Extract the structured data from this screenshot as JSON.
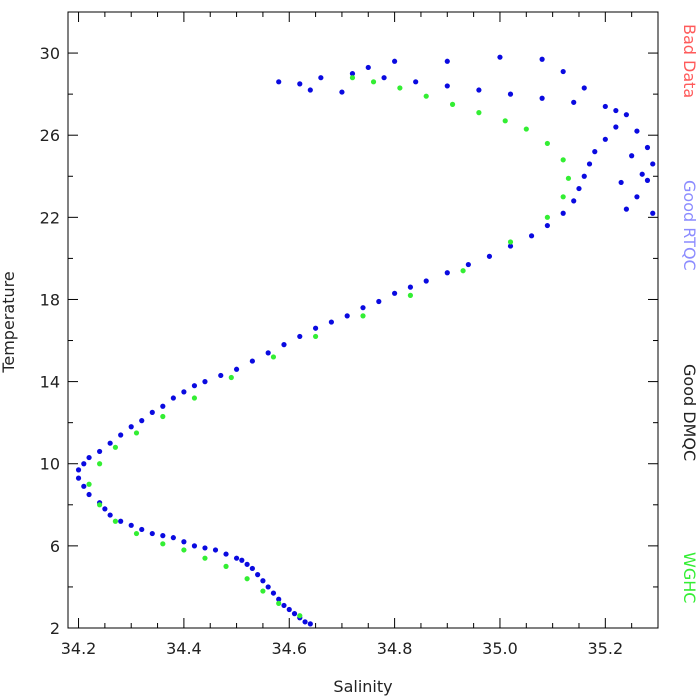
{
  "chart_data": {
    "type": "scatter",
    "xlabel": "Salinity",
    "ylabel": "Temperature",
    "xlim": [
      34.18,
      35.3
    ],
    "ylim": [
      2,
      32
    ],
    "x_ticks": [
      "34.2",
      "34.4",
      "34.6",
      "34.8",
      "35.0",
      "35.2"
    ],
    "y_ticks": [
      "2",
      "6",
      "10",
      "14",
      "18",
      "22",
      "26",
      "30"
    ],
    "legend": [
      {
        "label": "Bad Data",
        "color": "#ff5a5a"
      },
      {
        "label": "Good RTQC",
        "color": "#8c8cff"
      },
      {
        "label": "Good DMQC",
        "color": "#222222"
      },
      {
        "label": "WGHC",
        "color": "#33ee33"
      }
    ],
    "legend_placement": "right",
    "grid": false,
    "series": [
      {
        "color": "#0a0ae0",
        "points": [
          [
            34.64,
            2.2
          ],
          [
            34.63,
            2.3
          ],
          [
            34.62,
            2.5
          ],
          [
            34.61,
            2.7
          ],
          [
            34.6,
            2.9
          ],
          [
            34.59,
            3.1
          ],
          [
            34.58,
            3.4
          ],
          [
            34.57,
            3.7
          ],
          [
            34.56,
            4.0
          ],
          [
            34.55,
            4.3
          ],
          [
            34.54,
            4.6
          ],
          [
            34.53,
            4.9
          ],
          [
            34.52,
            5.1
          ],
          [
            34.51,
            5.3
          ],
          [
            34.5,
            5.4
          ],
          [
            34.48,
            5.6
          ],
          [
            34.46,
            5.8
          ],
          [
            34.44,
            5.9
          ],
          [
            34.42,
            6.0
          ],
          [
            34.4,
            6.2
          ],
          [
            34.38,
            6.4
          ],
          [
            34.36,
            6.5
          ],
          [
            34.34,
            6.6
          ],
          [
            34.32,
            6.8
          ],
          [
            34.3,
            7.0
          ],
          [
            34.28,
            7.2
          ],
          [
            34.26,
            7.5
          ],
          [
            34.25,
            7.8
          ],
          [
            34.24,
            8.1
          ],
          [
            34.22,
            8.5
          ],
          [
            34.21,
            8.9
          ],
          [
            34.2,
            9.3
          ],
          [
            34.2,
            9.7
          ],
          [
            34.21,
            10.0
          ],
          [
            34.22,
            10.3
          ],
          [
            34.24,
            10.6
          ],
          [
            34.26,
            11.0
          ],
          [
            34.28,
            11.4
          ],
          [
            34.3,
            11.8
          ],
          [
            34.32,
            12.1
          ],
          [
            34.34,
            12.5
          ],
          [
            34.36,
            12.8
          ],
          [
            34.38,
            13.2
          ],
          [
            34.4,
            13.5
          ],
          [
            34.42,
            13.8
          ],
          [
            34.44,
            14.0
          ],
          [
            34.47,
            14.3
          ],
          [
            34.5,
            14.6
          ],
          [
            34.53,
            15.0
          ],
          [
            34.56,
            15.4
          ],
          [
            34.59,
            15.8
          ],
          [
            34.62,
            16.2
          ],
          [
            34.65,
            16.6
          ],
          [
            34.68,
            16.9
          ],
          [
            34.71,
            17.2
          ],
          [
            34.74,
            17.6
          ],
          [
            34.77,
            17.9
          ],
          [
            34.8,
            18.3
          ],
          [
            34.83,
            18.6
          ],
          [
            34.86,
            18.9
          ],
          [
            34.9,
            19.3
          ],
          [
            34.94,
            19.7
          ],
          [
            34.98,
            20.1
          ],
          [
            35.02,
            20.6
          ],
          [
            35.06,
            21.1
          ],
          [
            35.09,
            21.6
          ],
          [
            35.12,
            22.2
          ],
          [
            35.14,
            22.8
          ],
          [
            35.15,
            23.4
          ],
          [
            35.16,
            24.0
          ],
          [
            35.17,
            24.6
          ],
          [
            35.18,
            25.2
          ],
          [
            35.2,
            25.8
          ],
          [
            35.22,
            26.4
          ],
          [
            35.24,
            27.0
          ],
          [
            35.2,
            27.4
          ],
          [
            35.14,
            27.6
          ],
          [
            35.08,
            27.8
          ],
          [
            35.02,
            28.0
          ],
          [
            34.96,
            28.2
          ],
          [
            34.9,
            28.4
          ],
          [
            34.84,
            28.6
          ],
          [
            34.78,
            28.8
          ],
          [
            34.72,
            29.0
          ],
          [
            34.66,
            28.8
          ],
          [
            34.62,
            28.5
          ],
          [
            34.58,
            28.6
          ],
          [
            34.64,
            28.2
          ],
          [
            34.7,
            28.1
          ],
          [
            34.75,
            29.3
          ],
          [
            34.8,
            29.6
          ],
          [
            34.9,
            29.6
          ],
          [
            35.0,
            29.8
          ],
          [
            35.08,
            29.7
          ],
          [
            35.12,
            29.1
          ],
          [
            35.16,
            28.3
          ],
          [
            35.22,
            27.2
          ],
          [
            35.26,
            26.2
          ],
          [
            35.28,
            25.4
          ],
          [
            35.29,
            24.6
          ],
          [
            35.28,
            23.8
          ],
          [
            35.26,
            23.0
          ],
          [
            35.24,
            22.4
          ],
          [
            35.29,
            22.2
          ],
          [
            35.27,
            24.1
          ],
          [
            35.25,
            25.0
          ],
          [
            35.23,
            23.7
          ]
        ]
      },
      {
        "color": "#33ee33",
        "points": [
          [
            34.62,
            2.6
          ],
          [
            34.58,
            3.2
          ],
          [
            34.55,
            3.8
          ],
          [
            34.52,
            4.4
          ],
          [
            34.48,
            5.0
          ],
          [
            34.44,
            5.4
          ],
          [
            34.4,
            5.8
          ],
          [
            34.36,
            6.1
          ],
          [
            34.31,
            6.6
          ],
          [
            34.27,
            7.2
          ],
          [
            34.24,
            8.0
          ],
          [
            34.22,
            9.0
          ],
          [
            34.24,
            10.0
          ],
          [
            34.27,
            10.8
          ],
          [
            34.31,
            11.5
          ],
          [
            34.36,
            12.3
          ],
          [
            34.42,
            13.2
          ],
          [
            34.49,
            14.2
          ],
          [
            34.57,
            15.2
          ],
          [
            34.65,
            16.2
          ],
          [
            34.74,
            17.2
          ],
          [
            34.83,
            18.2
          ],
          [
            34.93,
            19.4
          ],
          [
            35.02,
            20.8
          ],
          [
            35.09,
            22.0
          ],
          [
            35.12,
            23.0
          ],
          [
            35.13,
            23.9
          ],
          [
            35.12,
            24.8
          ],
          [
            35.09,
            25.6
          ],
          [
            35.05,
            26.3
          ],
          [
            35.01,
            26.7
          ],
          [
            34.96,
            27.1
          ],
          [
            34.91,
            27.5
          ],
          [
            34.86,
            27.9
          ],
          [
            34.81,
            28.3
          ],
          [
            34.76,
            28.6
          ],
          [
            34.72,
            28.8
          ]
        ]
      }
    ]
  }
}
